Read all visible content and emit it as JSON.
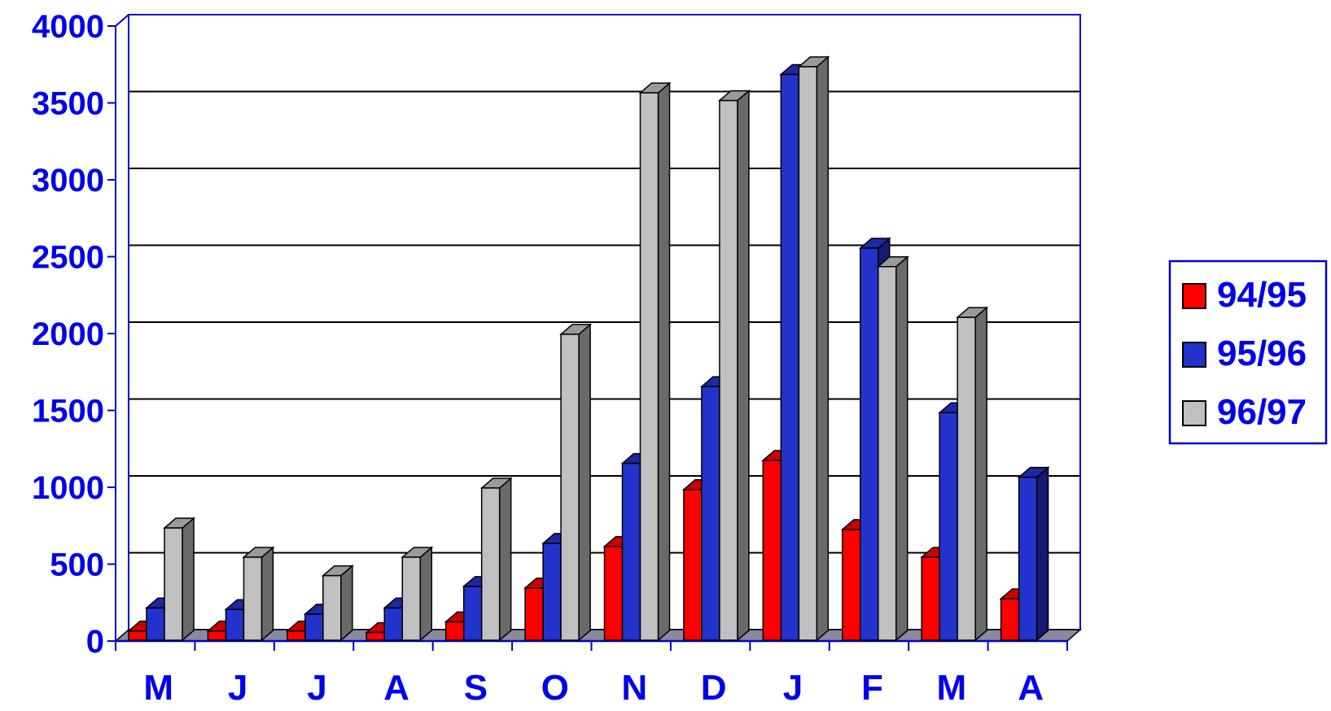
{
  "chart_data": {
    "type": "bar",
    "title": "",
    "xlabel": "",
    "ylabel": "",
    "categories": [
      "M",
      "J",
      "J",
      "A",
      "S",
      "O",
      "N",
      "D",
      "J",
      "F",
      "M",
      "A"
    ],
    "series": [
      {
        "name": "94/95",
        "color": "#ff0000",
        "values": [
          60,
          60,
          60,
          50,
          120,
          340,
          610,
          980,
          1170,
          720,
          540,
          270
        ]
      },
      {
        "name": "95/96",
        "color": "#2233cc",
        "values": [
          210,
          200,
          170,
          210,
          350,
          630,
          1150,
          1650,
          3680,
          2550,
          1480,
          1060
        ]
      },
      {
        "name": "96/97",
        "color": "#c0c0c0",
        "values": [
          730,
          540,
          420,
          540,
          990,
          1990,
          3560,
          3510,
          3730,
          2430,
          2100,
          null
        ]
      }
    ],
    "ylim": [
      0,
      4000
    ],
    "yticks": [
      0,
      500,
      1000,
      1500,
      2000,
      2500,
      3000,
      3500,
      4000
    ],
    "grid": true,
    "legend_position": "right",
    "axis_label_color": "#0000ee",
    "frame_color": "#0000cc",
    "floor_color": "#8a8a9a"
  }
}
